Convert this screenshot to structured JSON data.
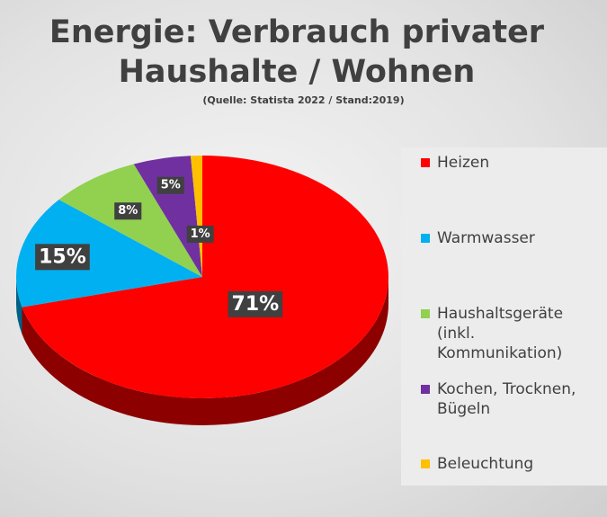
{
  "chart_data": {
    "type": "pie",
    "title": "Energie: Verbrauch privater Haushalte / Wohnen",
    "subtitle": "(Quelle: Statista 2022 / Stand:2019)",
    "categories": [
      "Heizen",
      "Warmwasser",
      "Haushaltsgeräte (inkl. Kommunikation)",
      "Kochen, Trocknen, Bügeln",
      "Beleuchtung"
    ],
    "values": [
      71,
      15,
      8,
      5,
      1
    ],
    "value_labels": [
      "71%",
      "15%",
      "8%",
      "5%",
      "1%"
    ],
    "colors": [
      "#ff0000",
      "#00b0f0",
      "#92d050",
      "#7030a0",
      "#ffc000"
    ],
    "legend": "right"
  }
}
